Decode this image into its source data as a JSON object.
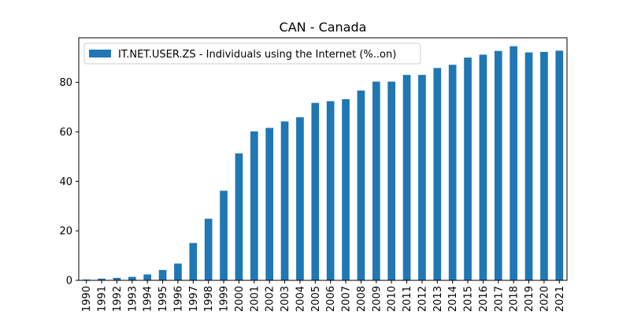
{
  "chart_data": {
    "type": "bar",
    "title": "CAN - Canada",
    "xlabel": "",
    "ylabel": "",
    "categories": [
      "1990",
      "1991",
      "1992",
      "1993",
      "1994",
      "1995",
      "1996",
      "1997",
      "1998",
      "1999",
      "2000",
      "2001",
      "2002",
      "2003",
      "2004",
      "2005",
      "2006",
      "2007",
      "2008",
      "2009",
      "2010",
      "2011",
      "2012",
      "2013",
      "2014",
      "2015",
      "2016",
      "2017",
      "2018",
      "2019",
      "2020",
      "2021"
    ],
    "series": [
      {
        "name": "IT.NET.USER.ZS - Individuals using the Internet (%..on)",
        "color": "#1f77b4",
        "values": [
          0.36,
          0.7,
          1.0,
          1.4,
          2.4,
          4.2,
          6.8,
          15.1,
          24.9,
          36.2,
          51.3,
          60.2,
          61.6,
          64.2,
          65.9,
          71.7,
          72.4,
          73.2,
          76.7,
          80.3,
          80.3,
          83.0,
          83.0,
          85.8,
          87.1,
          90.0,
          91.2,
          92.7,
          94.6,
          92.1,
          92.3,
          92.8
        ]
      }
    ],
    "ylim": [
      0,
      98
    ],
    "yticks": [
      0,
      20,
      40,
      60,
      80
    ],
    "grid": false,
    "legend_position": "top-left"
  }
}
